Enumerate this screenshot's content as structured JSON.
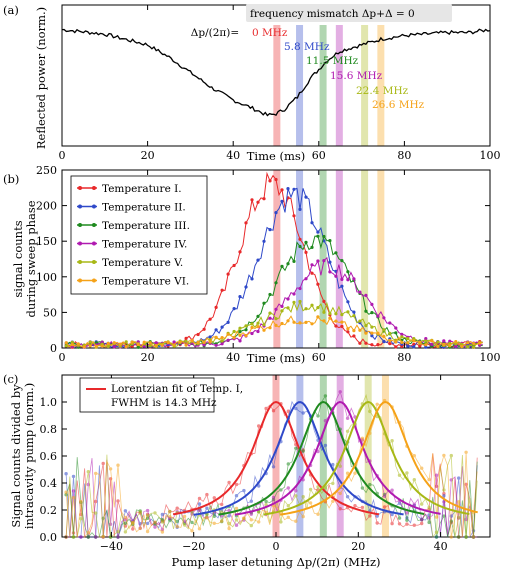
{
  "panels": [
    {
      "id": "a",
      "label": "(a)",
      "xlabel": "Time (ms)",
      "ylabel": "Reflected power (norm.)",
      "xticks": [
        "0",
        "20",
        "40",
        "60",
        "80",
        "100"
      ],
      "annotation_box": "frequency mismatch Δp+Δ = 0",
      "mismatch_label": "Δp/(2π)=",
      "line_labels": [
        "0 MHz",
        "5.8 MHz",
        "11.5 MHz",
        "15.6 MHz",
        "22.4 MHz",
        "26.6 MHz"
      ]
    },
    {
      "id": "b",
      "label": "(b)",
      "xlabel": "Time (ms)",
      "ylabel_1": "signal counts",
      "ylabel_2": "during sweep phase",
      "xticks": [
        "0",
        "20",
        "40",
        "60",
        "80",
        "100"
      ],
      "yticks": [
        "0",
        "50",
        "100",
        "150",
        "200",
        "250"
      ],
      "legend": [
        "Temperature I.",
        "Temperature II.",
        "Temperature III.",
        "Temperature IV.",
        "Temperature V.",
        "Temperature VI."
      ]
    },
    {
      "id": "c",
      "label": "(c)",
      "xlabel": "Pump laser detuning Δp/(2π) (MHz)",
      "ylabel_1": "Signal counts divided by",
      "ylabel_2": "intracavity pump (norm.)",
      "xticks": [
        "−40",
        "−20",
        "0",
        "20",
        "40"
      ],
      "yticks": [
        "0.0",
        "0.2",
        "0.4",
        "0.6",
        "0.8",
        "1.0"
      ],
      "legend_1": "Lorentzian fit of Temp. I,",
      "legend_2": "FWHM is 14.3 MHz"
    }
  ],
  "chart_data": [
    {
      "type": "line",
      "title": "",
      "xlabel": "Time (ms)",
      "ylabel": "Reflected power (norm.)",
      "xlim": [
        0,
        100
      ],
      "series": [
        {
          "x": [
            0,
            10,
            20,
            25,
            30,
            35,
            40,
            45,
            48,
            50,
            52,
            55,
            58,
            60,
            62,
            65,
            70,
            75,
            80,
            85,
            90,
            95,
            100
          ],
          "y": [
            1.0,
            0.985,
            0.95,
            0.91,
            0.86,
            0.81,
            0.77,
            0.74,
            0.72,
            0.725,
            0.74,
            0.78,
            0.84,
            0.87,
            0.9,
            0.93,
            0.95,
            0.97,
            0.98,
            0.985,
            0.99,
            0.99,
            1.0
          ]
        }
      ],
      "vertical_lines": [
        {
          "x": 50.2,
          "label": "0 MHz",
          "color": "#e8292b"
        },
        {
          "x": 55.5,
          "label": "5.8 MHz",
          "color": "#2f49c9"
        },
        {
          "x": 61.0,
          "label": "11.5 MHz",
          "color": "#1f8a1f"
        },
        {
          "x": 64.8,
          "label": "15.6 MHz",
          "color": "#b01ab0"
        },
        {
          "x": 70.7,
          "label": "22.4 MHz",
          "color": "#a8b816"
        },
        {
          "x": 74.5,
          "label": "26.6 MHz",
          "color": "#f5a218"
        }
      ]
    },
    {
      "type": "line",
      "title": "",
      "xlabel": "Time (ms)",
      "ylabel": "signal counts during sweep phase",
      "xlim": [
        0,
        100
      ],
      "ylim": [
        0,
        250
      ],
      "grid": false,
      "legend_position": "top-left",
      "series": [
        {
          "name": "Temperature I.",
          "color": "#e8292b",
          "center": 49,
          "peak": 225,
          "width": 7.5
        },
        {
          "name": "Temperature II.",
          "color": "#2f49c9",
          "center": 54,
          "peak": 210,
          "width": 8
        },
        {
          "name": "Temperature III.",
          "color": "#1f8a1f",
          "center": 59,
          "peak": 148,
          "width": 8.5
        },
        {
          "name": "Temperature IV.",
          "color": "#b01ab0",
          "center": 62,
          "peak": 110,
          "width": 9
        },
        {
          "name": "Temperature V.",
          "color": "#a8b816",
          "center": 58,
          "peak": 55,
          "width": 11
        },
        {
          "name": "Temperature VI.",
          "color": "#f5a218",
          "center": 57,
          "peak": 35,
          "width": 12
        }
      ],
      "vertical_lines": [
        50.2,
        55.5,
        61.0,
        64.8,
        70.7,
        74.5
      ]
    },
    {
      "type": "scatter",
      "title": "",
      "xlabel": "Pump laser detuning Δp/(2π) (MHz)",
      "ylabel": "Signal counts divided by intracavity pump (norm.)",
      "xlim": [
        -52,
        52
      ],
      "ylim": [
        0,
        1.2
      ],
      "legend_position": "top-left",
      "fits": [
        {
          "name": "Lorentzian fit of Temp. I, FWHM is 14.3 MHz",
          "color": "#e8292b",
          "center": 0.0,
          "fwhm": 14.3,
          "x_range": [
            -25,
            25
          ]
        },
        {
          "color": "#2f49c9",
          "center": 5.8,
          "fwhm": 14.3,
          "x_range": [
            -20,
            31
          ]
        },
        {
          "color": "#1f8a1f",
          "center": 11.5,
          "fwhm": 14.3,
          "x_range": [
            -14,
            36
          ]
        },
        {
          "color": "#b01ab0",
          "center": 15.6,
          "fwhm": 14.3,
          "x_range": [
            -10,
            40
          ]
        },
        {
          "color": "#a8b816",
          "center": 22.4,
          "fwhm": 14.3,
          "x_range": [
            -3,
            47
          ]
        },
        {
          "color": "#f5a218",
          "center": 26.6,
          "fwhm": 14.3,
          "x_range": [
            1,
            49
          ]
        }
      ],
      "vertical_lines": [
        0.0,
        5.8,
        11.5,
        15.6,
        22.4,
        26.6
      ],
      "baseline": 0.1
    }
  ]
}
